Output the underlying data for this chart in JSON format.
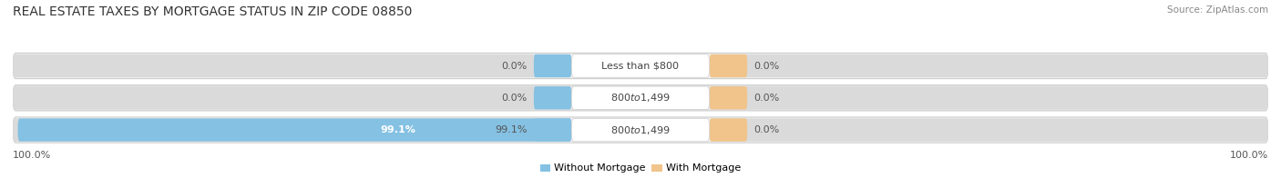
{
  "title": "REAL ESTATE TAXES BY MORTGAGE STATUS IN ZIP CODE 08850",
  "source": "Source: ZipAtlas.com",
  "rows": [
    {
      "label": "Less than $800",
      "without_mortgage": 0.0,
      "with_mortgage": 0.0
    },
    {
      "label": "$800 to $1,499",
      "without_mortgage": 0.0,
      "with_mortgage": 0.0
    },
    {
      "label": "$800 to $1,499",
      "without_mortgage": 99.1,
      "with_mortgage": 0.0
    }
  ],
  "color_without": "#85C1E3",
  "color_with": "#F0C48A",
  "row_bg_colors": [
    "#F2F2F2",
    "#E8E8E8",
    "#F2F2F2"
  ],
  "row_border_color": "#CCCCCC",
  "bar_bg_left": "#DADADA",
  "bar_bg_right": "#DADADA",
  "axis_left_label": "100.0%",
  "axis_right_label": "100.0%",
  "title_fontsize": 10,
  "label_fontsize": 8,
  "legend_fontsize": 8,
  "source_fontsize": 7.5,
  "legend_label_without": "Without Mortgage",
  "legend_label_with": "With Mortgage"
}
